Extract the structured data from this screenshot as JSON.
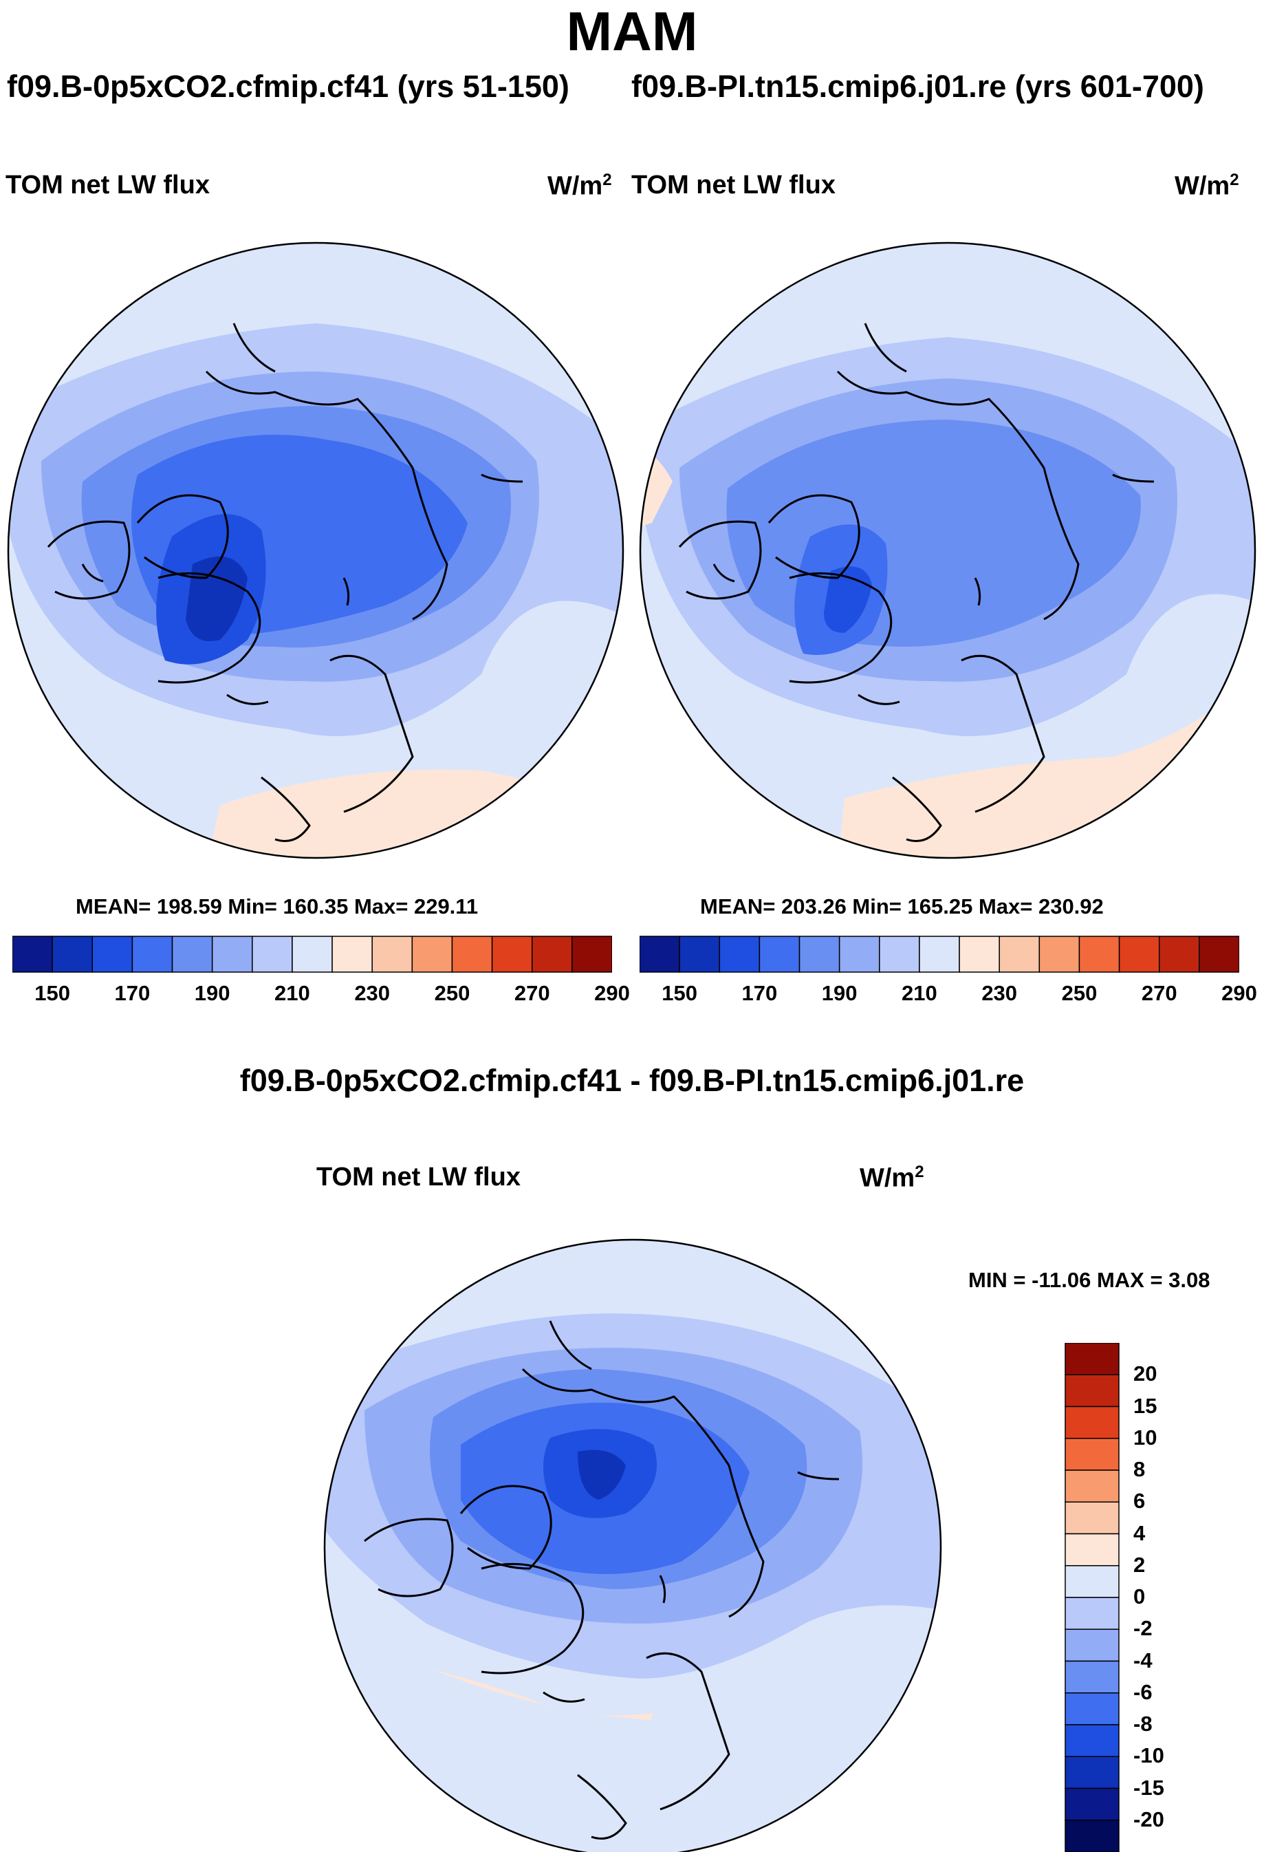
{
  "season": "MAM",
  "top_panels": [
    {
      "case_title": "f09.B-0p5xCO2.cfmip.cf41 (yrs 51-150)",
      "variable": "TOM net LW flux",
      "units_base": "W/m",
      "units_exp": "2",
      "stats": "MEAN= 198.59  Min= 160.35  Max= 229.11"
    },
    {
      "case_title": "f09.B-PI.tn15.cmip6.j01.re (yrs 601-700)",
      "variable": "TOM net LW flux",
      "units_base": "W/m",
      "units_exp": "2",
      "stats": "MEAN= 203.26  Min= 165.25  Max= 230.92"
    }
  ],
  "abs_colorbar": {
    "labels": [
      "150",
      "170",
      "190",
      "210",
      "230",
      "250",
      "270",
      "290"
    ],
    "colors": [
      "#0a1a8c",
      "#0f33b8",
      "#1f4fe0",
      "#3f6ef0",
      "#6a8ff2",
      "#93acf6",
      "#b8c9fa",
      "#dbe6fb",
      "#fde6d8",
      "#fbc7aa",
      "#f89c6f",
      "#f26a3b",
      "#e0401c",
      "#c0260f",
      "#8f0c05"
    ]
  },
  "diff_panel": {
    "title": "f09.B-0p5xCO2.cfmip.cf41 - f09.B-PI.tn15.cmip6.j01.re",
    "variable": "TOM net LW flux",
    "units_base": "W/m",
    "units_exp": "2",
    "minmax": "MIN = -11.06 MAX =   3.08"
  },
  "diff_colorbar": {
    "labels": [
      "20",
      "15",
      "10",
      "8",
      "6",
      "4",
      "2",
      "0",
      "-2",
      "-4",
      "-6",
      "-8",
      "-10",
      "-15",
      "-20"
    ],
    "colors": [
      "#8f0c05",
      "#c0260f",
      "#e0401c",
      "#f26a3b",
      "#f89c6f",
      "#fbc7aa",
      "#fde6d8",
      "#dbe6fb",
      "#b8c9fa",
      "#93acf6",
      "#6a8ff2",
      "#3f6ef0",
      "#1f4fe0",
      "#0f33b8",
      "#0a1a8c",
      "#020a5c"
    ]
  }
}
